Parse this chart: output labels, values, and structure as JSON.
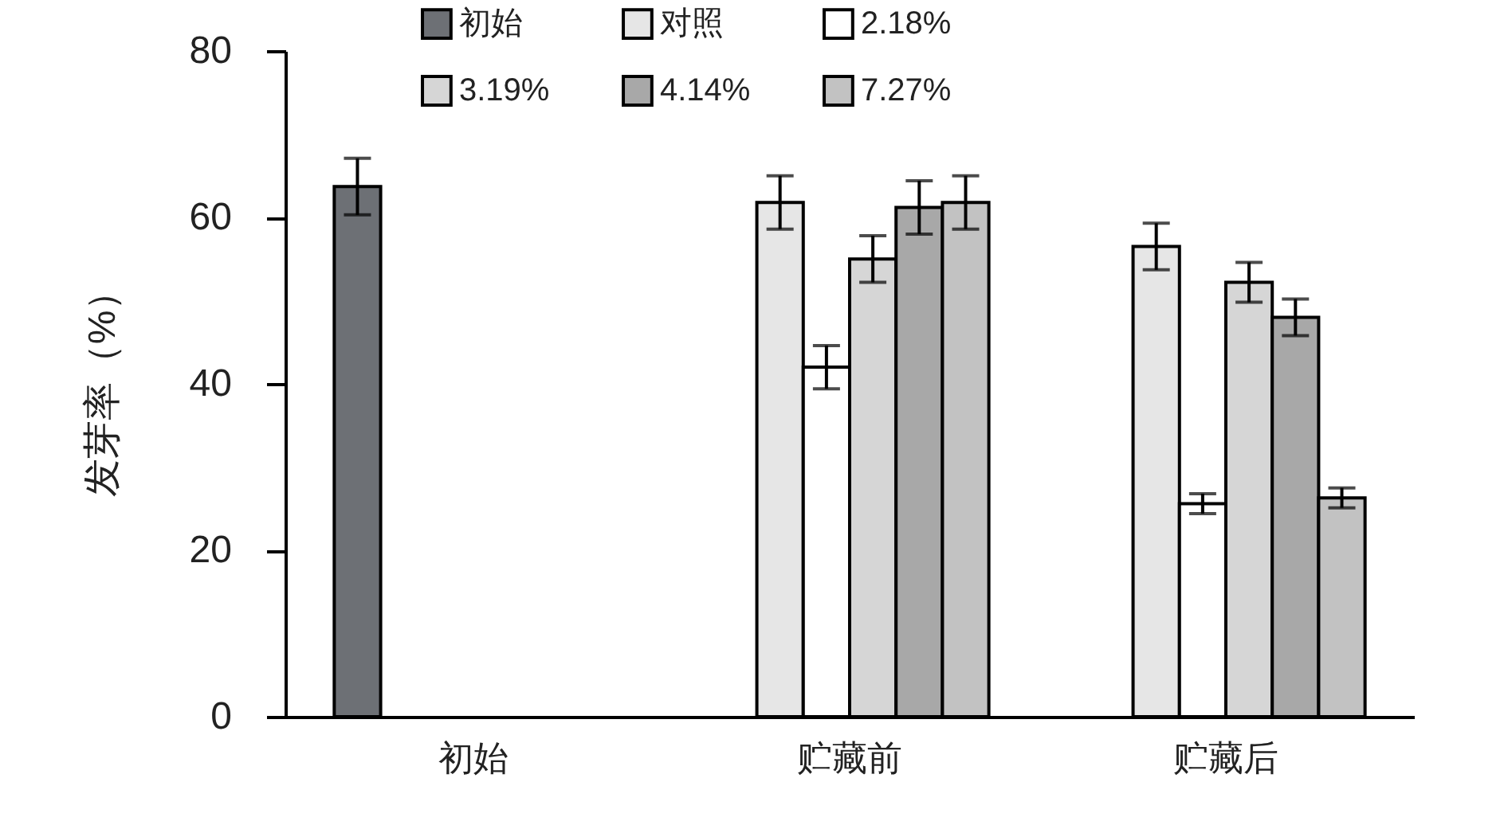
{
  "chart_data": {
    "type": "bar",
    "ylabel": "发芽率（%）",
    "categories": [
      "初始",
      "贮藏前",
      "贮藏后"
    ],
    "series": [
      {
        "name": "初始",
        "color": "#6d7075",
        "values": [
          63.7,
          null,
          null
        ],
        "errors": [
          3.4,
          null,
          null
        ]
      },
      {
        "name": "对照",
        "color": "#e6e6e6",
        "values": [
          null,
          61.8,
          56.5
        ],
        "errors": [
          null,
          3.2,
          2.8
        ]
      },
      {
        "name": "2.18%",
        "color": "#ffffff",
        "values": [
          null,
          42.0,
          25.6
        ],
        "errors": [
          null,
          2.6,
          1.2
        ]
      },
      {
        "name": "3.19%",
        "color": "#d6d6d6",
        "values": [
          null,
          55.0,
          52.2
        ],
        "errors": [
          null,
          2.8,
          2.4
        ]
      },
      {
        "name": "4.14%",
        "color": "#a8a8a8",
        "values": [
          null,
          61.2,
          48.0
        ],
        "errors": [
          null,
          3.2,
          2.2
        ]
      },
      {
        "name": "7.27%",
        "color": "#c2c2c2",
        "values": [
          null,
          61.8,
          26.3
        ],
        "errors": [
          null,
          3.2,
          1.2
        ]
      }
    ],
    "ylim": [
      0,
      80
    ],
    "yticks": [
      0,
      20,
      40,
      60,
      80
    ],
    "legend": "top"
  }
}
